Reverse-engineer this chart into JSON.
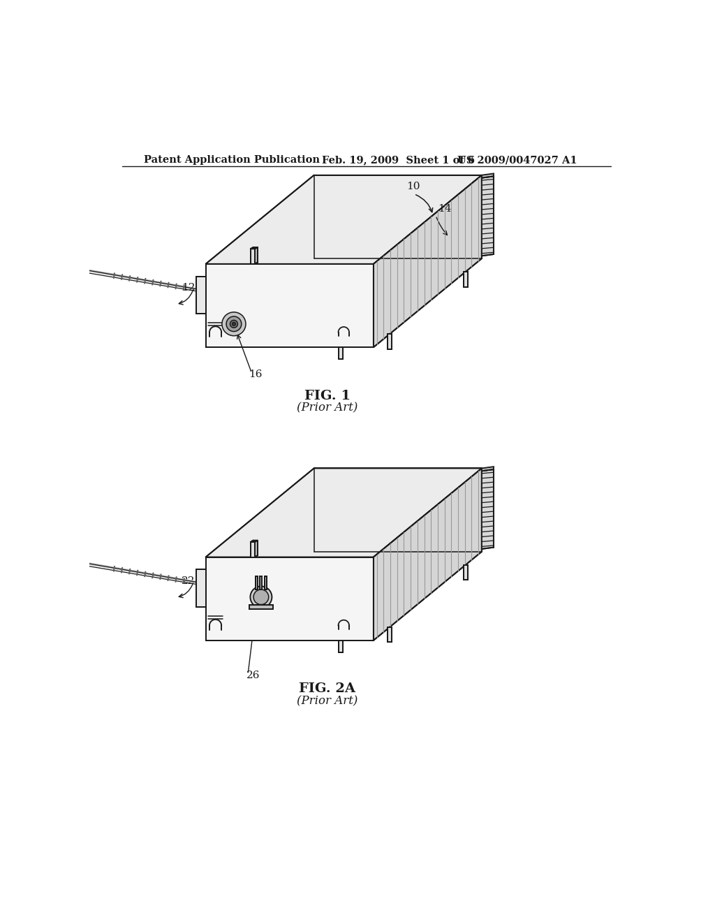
{
  "background_color": "#ffffff",
  "header_left": "Patent Application Publication",
  "header_mid": "Feb. 19, 2009  Sheet 1 of 6",
  "header_right": "US 2009/0047027 A1",
  "fig1_label": "FIG. 1",
  "fig1_sublabel": "(Prior Art)",
  "fig2_label": "FIG. 2A",
  "fig2_sublabel": "(Prior Art)",
  "line_color": "#1a1a1a",
  "face_top": "#ececec",
  "face_front": "#f5f5f5",
  "face_right": "#d5d5d5",
  "face_right_dark": "#c0c0c0",
  "n_pins": 16
}
